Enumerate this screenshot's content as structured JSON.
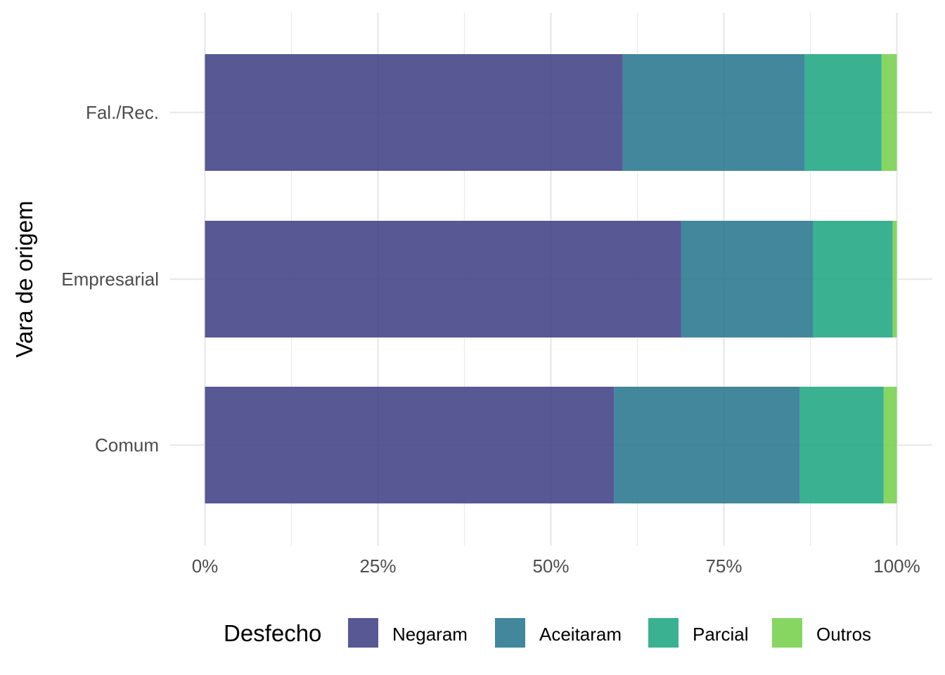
{
  "chart_data": {
    "type": "bar",
    "orientation": "horizontal",
    "stacked": "percent",
    "categories": [
      "Fal./Rec.",
      "Empresarial",
      "Comum"
    ],
    "series": [
      {
        "name": "Negaram",
        "color": "#46468A",
        "values": [
          60.4,
          68.8,
          59.1
        ]
      },
      {
        "name": "Aceitaram",
        "color": "#2D7A91",
        "values": [
          26.3,
          19.1,
          26.9
        ]
      },
      {
        "name": "Parcial",
        "color": "#25A885",
        "values": [
          11.1,
          11.5,
          12.1
        ]
      },
      {
        "name": "Outros",
        "color": "#7AD151",
        "values": [
          2.2,
          0.6,
          1.9
        ]
      }
    ],
    "xlim": [
      0,
      100
    ],
    "x_ticks": [
      0,
      25,
      50,
      75,
      100
    ],
    "x_tick_labels": [
      "0%",
      "25%",
      "50%",
      "75%",
      "100%"
    ],
    "xlabel": "",
    "ylabel": "Vara de origem",
    "legend": {
      "title": "Desfecho",
      "position": "bottom"
    },
    "grid": true,
    "bar_opacity": 0.9
  }
}
